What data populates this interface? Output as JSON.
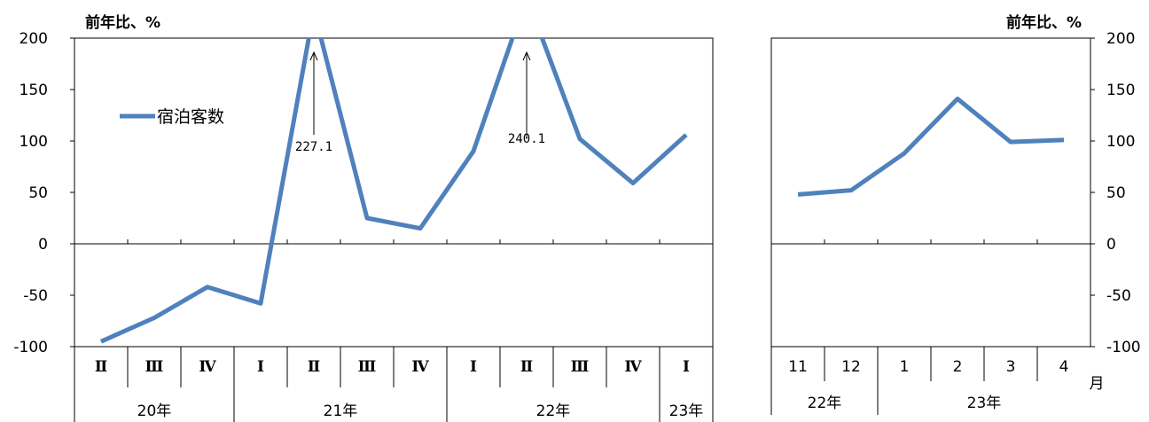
{
  "chart_data": [
    {
      "type": "line",
      "unit_label": "前年比、%",
      "ylim": [
        -100,
        200
      ],
      "yticks": [
        "200",
        "150",
        "100",
        "50",
        "0",
        "-50",
        "-100"
      ],
      "categories": [
        "Ⅱ",
        "Ⅲ",
        "Ⅳ",
        "Ⅰ",
        "Ⅱ",
        "Ⅲ",
        "Ⅳ",
        "Ⅰ",
        "Ⅱ",
        "Ⅲ",
        "Ⅳ",
        "Ⅰ"
      ],
      "year_groups": [
        {
          "label": "20年",
          "count": 3
        },
        {
          "label": "21年",
          "count": 4
        },
        {
          "label": "22年",
          "count": 4
        },
        {
          "label": "23年",
          "count": 1
        }
      ],
      "series": [
        {
          "name": "宿泊客数",
          "color": "#4f81bd",
          "values": [
            -95,
            -72,
            -42,
            -58,
            227.1,
            25,
            15,
            90,
            240.1,
            102,
            59,
            106
          ]
        }
      ],
      "annotations": [
        {
          "text": "227.1",
          "index": 4
        },
        {
          "text": "240.1",
          "index": 8
        }
      ],
      "legend": "upper-left inside plot"
    },
    {
      "type": "line",
      "unit_label": "前年比、%",
      "ylim": [
        -100,
        200
      ],
      "yticks": [
        "200",
        "150",
        "100",
        "50",
        "0",
        "-50",
        "-100"
      ],
      "categories": [
        "11",
        "12",
        "1",
        "2",
        "3",
        "4"
      ],
      "month_suffix": "月",
      "year_groups": [
        {
          "label": "22年",
          "count": 2
        },
        {
          "label": "23年",
          "count": 4
        }
      ],
      "series": [
        {
          "color": "#4f81bd",
          "values": [
            48,
            52,
            88,
            141,
            99,
            101
          ]
        }
      ]
    }
  ]
}
